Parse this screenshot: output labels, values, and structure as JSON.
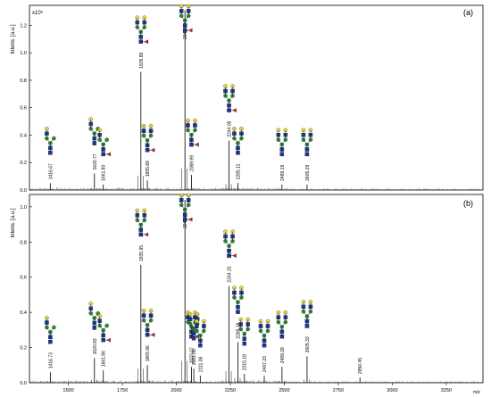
{
  "chart_data": [
    {
      "type": "line",
      "panel_label": "(a)",
      "y_axis_label": "Intens. [a.u.]",
      "y_scale_label": "x10⁵",
      "ylim": [
        0,
        1.32
      ],
      "y_ticks": [
        "0.0",
        "0.2",
        "0.4",
        "0.6",
        "0.8",
        "1.0",
        "1.2"
      ],
      "grid": false,
      "peaks": [
        {
          "mz": 1416.67,
          "intensity": 0.05,
          "label": "1416.67"
        },
        {
          "mz": 1620.77,
          "intensity": 0.12,
          "label": "1620.77"
        },
        {
          "mz": 1661.8,
          "intensity": 0.04,
          "label": "1661.80"
        },
        {
          "mz": 1835.88,
          "intensity": 0.86,
          "label": "1835.88"
        },
        {
          "mz": 1865.89,
          "intensity": 0.07,
          "label": "1865.89"
        },
        {
          "mz": 2040.1,
          "intensity": 1.31,
          "label": "2040.10"
        },
        {
          "mz": 2069.99,
          "intensity": 0.11,
          "label": "2069.99"
        },
        {
          "mz": 2244.09,
          "intensity": 0.36,
          "label": "2244.09"
        },
        {
          "mz": 2285.11,
          "intensity": 0.05,
          "label": "2285.11"
        },
        {
          "mz": 2489.19,
          "intensity": 0.04,
          "label": "2489.19"
        },
        {
          "mz": 2605.29,
          "intensity": 0.04,
          "label": "2605.29"
        }
      ]
    },
    {
      "type": "line",
      "panel_label": "(b)",
      "y_axis_label": "Intens. [a.u.]",
      "y_scale_label": "",
      "ylim": [
        0,
        1.05
      ],
      "y_ticks": [
        "0.0",
        "0.2",
        "0.4",
        "0.6",
        "0.8",
        "1.0"
      ],
      "grid": false,
      "peaks": [
        {
          "mz": 1416.73,
          "intensity": 0.06,
          "label": "1416.73"
        },
        {
          "mz": 1620.83,
          "intensity": 0.14,
          "label": "1620.83"
        },
        {
          "mz": 1661.86,
          "intensity": 0.07,
          "label": "1661.86"
        },
        {
          "mz": 1835.95,
          "intensity": 0.67,
          "label": "1835.95"
        },
        {
          "mz": 1865.96,
          "intensity": 0.1,
          "label": "1865.96"
        },
        {
          "mz": 2040.07,
          "intensity": 1.04,
          "label": "2040.07"
        },
        {
          "mz": 2070.07,
          "intensity": 0.09,
          "label": "2070.07"
        },
        {
          "mz": 2081.08,
          "intensity": 0.08,
          "label": "2081.08"
        },
        {
          "mz": 2111.08,
          "intensity": 0.04,
          "label": "2111.08"
        },
        {
          "mz": 2244.15,
          "intensity": 0.55,
          "label": "2244.15"
        },
        {
          "mz": 2285.18,
          "intensity": 0.23,
          "label": "2285.18"
        },
        {
          "mz": 2315.18,
          "intensity": 0.05,
          "label": "2315.18"
        },
        {
          "mz": 2407.23,
          "intensity": 0.04,
          "label": "2407.23"
        },
        {
          "mz": 2489.28,
          "intensity": 0.09,
          "label": "2489.28"
        },
        {
          "mz": 2605.33,
          "intensity": 0.15,
          "label": "2605.33"
        },
        {
          "mz": 2850.45,
          "intensity": 0.03,
          "label": "2850.45"
        }
      ]
    }
  ],
  "x_axis": {
    "label": "m/z",
    "xlim": [
      1320,
      3420
    ],
    "ticks": [
      "1500",
      "1750",
      "2000",
      "2250",
      "2500",
      "2750",
      "3000",
      "3250"
    ]
  },
  "colors": {
    "spectrum": "#1a1a1a",
    "hexnac": "#1f3f9f",
    "hexose": "#f3e23a",
    "mannose_green": "#2f9a3b",
    "fucose": "#c8262a"
  }
}
